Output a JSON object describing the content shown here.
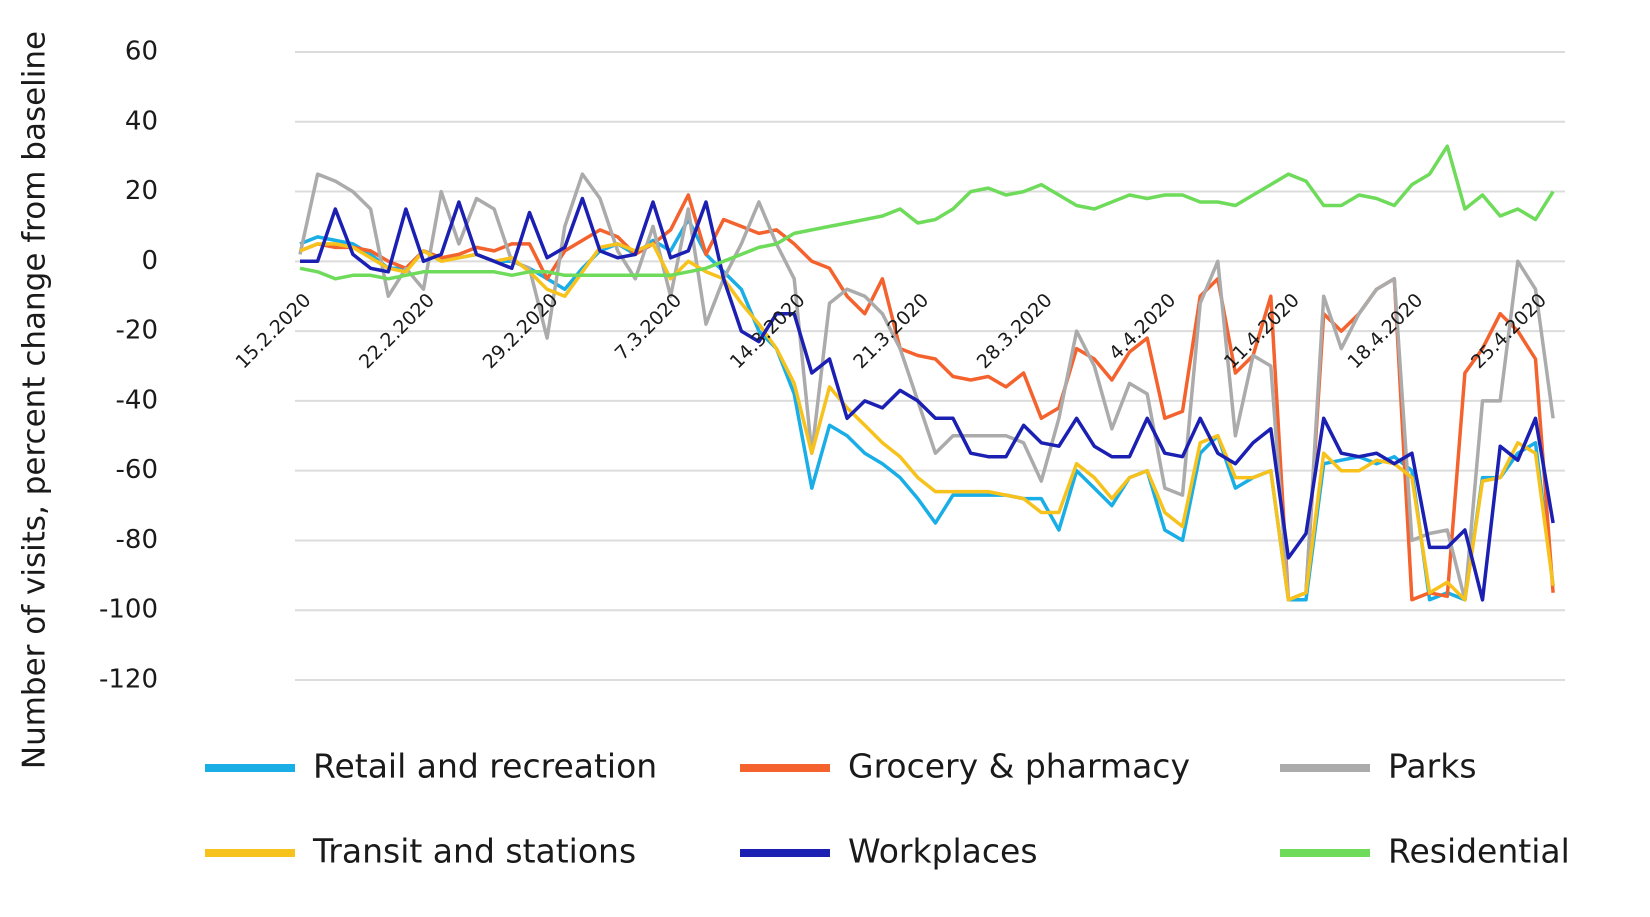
{
  "chart_data": {
    "type": "line",
    "y_label": "Number of visits, percent change from baseline",
    "categories": [
      "15.2.2020",
      null,
      null,
      null,
      null,
      null,
      null,
      "22.2.2020",
      null,
      null,
      null,
      null,
      null,
      null,
      "29.2.2020",
      null,
      null,
      null,
      null,
      null,
      null,
      "7.3.2020",
      null,
      null,
      null,
      null,
      null,
      null,
      "14.3.2020",
      null,
      null,
      null,
      null,
      null,
      null,
      "21.3.2020",
      null,
      null,
      null,
      null,
      null,
      null,
      "28.3.2020",
      null,
      null,
      null,
      null,
      null,
      null,
      "4.4.2020",
      null,
      null,
      null,
      null,
      null,
      null,
      "11.4.2020",
      null,
      null,
      null,
      null,
      null,
      null,
      "18.4.2020",
      null,
      null,
      null,
      null,
      null,
      null,
      "25.4.2020",
      null
    ],
    "ylim": [
      -120,
      60
    ],
    "yticks": [
      -120,
      -100,
      -80,
      -60,
      -40,
      -20,
      0,
      20,
      40,
      60
    ],
    "grid": true,
    "series": [
      {
        "name": "Retail and recreation",
        "color": "#1aaee6",
        "values": [
          5,
          7,
          6,
          5,
          2,
          -2,
          -2,
          3,
          1,
          1,
          2,
          0,
          0,
          -2,
          -5,
          -8,
          -2,
          3,
          5,
          2,
          6,
          3,
          12,
          2,
          -3,
          -8,
          -20,
          -25,
          -38,
          -65,
          -47,
          -50,
          -55,
          -58,
          -62,
          -68,
          -75,
          -67,
          -67,
          -67,
          -67,
          -68,
          -68,
          -77,
          -60,
          -65,
          -70,
          -62,
          -60,
          -77,
          -80,
          -55,
          -50,
          -65,
          -62,
          -60,
          -97,
          -97,
          -58,
          -57,
          -56,
          -58,
          -56,
          -60,
          -97,
          -95,
          -97,
          -62,
          -62,
          -55,
          -52,
          -93
        ]
      },
      {
        "name": "Grocery & pharmacy",
        "color": "#f4622e",
        "values": [
          3,
          5,
          4,
          4,
          3,
          0,
          -2,
          3,
          1,
          2,
          4,
          3,
          5,
          5,
          -5,
          3,
          6,
          9,
          7,
          2,
          5,
          9,
          19,
          2,
          12,
          10,
          8,
          9,
          5,
          0,
          -2,
          -10,
          -15,
          -5,
          -25,
          -27,
          -28,
          -33,
          -34,
          -33,
          -36,
          -32,
          -45,
          -42,
          -25,
          -28,
          -34,
          -26,
          -22,
          -45,
          -43,
          -10,
          -5,
          -32,
          -27,
          -10,
          -97,
          -95,
          -15,
          -20,
          -15,
          -8,
          -5,
          -97,
          -95,
          -96,
          -32,
          -25,
          -15,
          -20,
          -28,
          -95
        ]
      },
      {
        "name": "Parks",
        "color": "#ababab",
        "values": [
          2,
          25,
          23,
          20,
          15,
          -10,
          -2,
          -8,
          20,
          5,
          18,
          15,
          0,
          -2,
          -22,
          10,
          25,
          18,
          3,
          -5,
          10,
          -10,
          15,
          -18,
          -5,
          5,
          17,
          5,
          -5,
          -55,
          -12,
          -8,
          -10,
          -15,
          -25,
          -40,
          -55,
          -50,
          -50,
          -50,
          -50,
          -52,
          -63,
          -45,
          -20,
          -30,
          -48,
          -35,
          -38,
          -65,
          -67,
          -12,
          0,
          -50,
          -27,
          -30,
          -97,
          -95,
          -10,
          -25,
          -15,
          -8,
          -5,
          -80,
          -78,
          -77,
          -97,
          -40,
          -40,
          0,
          -8,
          -45
        ]
      },
      {
        "name": "Transit and stations",
        "color": "#f8c21d",
        "values": [
          3,
          5,
          5,
          4,
          1,
          -2,
          -3,
          3,
          0,
          1,
          2,
          0,
          1,
          -3,
          -8,
          -10,
          -3,
          4,
          5,
          3,
          5,
          -5,
          0,
          -3,
          -5,
          -12,
          -18,
          -25,
          -35,
          -55,
          -36,
          -42,
          -47,
          -52,
          -56,
          -62,
          -66,
          -66,
          -66,
          -66,
          -67,
          -68,
          -72,
          -72,
          -58,
          -62,
          -68,
          -62,
          -60,
          -72,
          -76,
          -52,
          -50,
          -62,
          -62,
          -60,
          -97,
          -95,
          -55,
          -60,
          -60,
          -57,
          -58,
          -62,
          -95,
          -92,
          -97,
          -63,
          -62,
          -52,
          -55,
          -93
        ]
      },
      {
        "name": "Workplaces",
        "color": "#1b20b2",
        "values": [
          0,
          0,
          15,
          2,
          -2,
          -3,
          15,
          0,
          2,
          17,
          2,
          0,
          -2,
          14,
          1,
          4,
          18,
          3,
          1,
          2,
          17,
          1,
          3,
          17,
          -5,
          -20,
          -23,
          -15,
          -15,
          -32,
          -28,
          -45,
          -40,
          -42,
          -37,
          -40,
          -45,
          -45,
          -55,
          -56,
          -56,
          -47,
          -52,
          -53,
          -45,
          -53,
          -56,
          -56,
          -45,
          -55,
          -56,
          -45,
          -55,
          -58,
          -52,
          -48,
          -85,
          -78,
          -45,
          -55,
          -56,
          -55,
          -58,
          -55,
          -82,
          -82,
          -77,
          -97,
          -53,
          -57,
          -45,
          -75
        ]
      },
      {
        "name": "Residential",
        "color": "#6edb5a",
        "values": [
          -2,
          -3,
          -5,
          -4,
          -4,
          -5,
          -4,
          -3,
          -3,
          -3,
          -3,
          -3,
          -4,
          -3,
          -3,
          -4,
          -4,
          -4,
          -4,
          -4,
          -4,
          -4,
          -3,
          -2,
          0,
          2,
          4,
          5,
          8,
          9,
          10,
          11,
          12,
          13,
          15,
          11,
          12,
          15,
          20,
          21,
          19,
          20,
          22,
          19,
          16,
          15,
          17,
          19,
          18,
          19,
          19,
          17,
          17,
          16,
          19,
          22,
          25,
          23,
          16,
          16,
          19,
          18,
          16,
          22,
          25,
          33,
          15,
          19,
          13,
          15,
          12,
          20
        ]
      }
    ]
  }
}
